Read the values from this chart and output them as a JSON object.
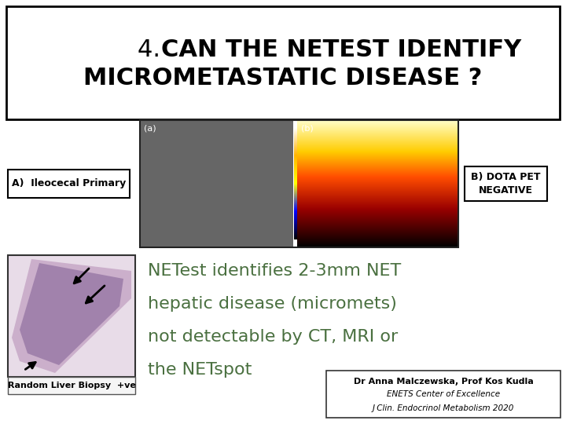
{
  "title_num": "4. ",
  "title_bold1": "CAN THE NETEST IDENTIFY",
  "title_bold2": "MICROMETASTATIC DISEASE ?",
  "label_a": "A)  Ileocecal Primary",
  "label_b1": "B) DOTA PET",
  "label_b2": "NEGATIVE",
  "label_biopsy": "Random Liver Biopsy  +ve",
  "main_text_line1": "NETest identifies 2-3mm NET",
  "main_text_line2": "hepatic disease (micromets)",
  "main_text_line3": "not detectable by CT, MRI or",
  "main_text_line4": "the NETspot",
  "credit_line1": "Dr Anna Malczewska, Prof Kos Kudla",
  "credit_line2": "ENETS Center of Excellence",
  "credit_line3": "J Clin. Endocrinol Metabolism 2020",
  "text_color_green": "#4a7040",
  "text_color_black": "#000000",
  "bg_color": "#ffffff",
  "box_color": "#000000",
  "title_fontsize": 22,
  "label_fontsize": 9,
  "main_fontsize": 16,
  "credit_fontsize_bold": 8,
  "credit_fontsize_italic": 7.5
}
